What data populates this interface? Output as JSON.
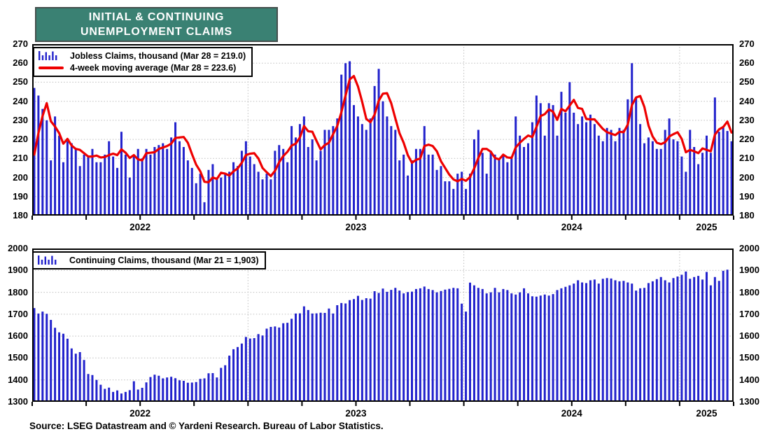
{
  "page": {
    "title_line1": "INITIAL & CONTINUING",
    "title_line2": "UNEMPLOYMENT CLAIMS",
    "source": "Source: LSEG Datastream and © Yardeni Research. Bureau of Labor Statistics."
  },
  "colors": {
    "bars": "#2222CC",
    "line": "#EE0000",
    "title_bg": "#3A8173",
    "title_border": "#454F4D",
    "grid": "#BDBDBD",
    "frame": "#000000"
  },
  "chart_data": [
    {
      "id": "initial-claims",
      "type": "bar",
      "title": "Jobless Claims with 4-week moving average",
      "frequency": "weekly",
      "unit": "thousand",
      "x_range": [
        "Jan 2022",
        "Mar 28, 2025"
      ],
      "ylim": [
        180,
        270
      ],
      "ytick_step": 10,
      "yticks": [
        180,
        190,
        200,
        210,
        220,
        230,
        240,
        250,
        260,
        270
      ],
      "x_slots": 169,
      "year_start_weeks": [
        52,
        104,
        156
      ],
      "year_labels": [
        {
          "label": "2022",
          "center_week": 26
        },
        {
          "label": "2023",
          "center_week": 78
        },
        {
          "label": "2024",
          "center_week": 130
        },
        {
          "label": "2025",
          "center_week": 162.5
        }
      ],
      "grid": "dotted horizontal lines every 10; dotted vertical lines at year starts",
      "legend_position": "top-left",
      "legend": [
        {
          "label": "Jobless Claims, thousand (Mar 28 = 219.0)",
          "swatch": "bars"
        },
        {
          "label": "4-week moving average (Mar 28 = 223.6)",
          "swatch": "line"
        }
      ],
      "last_point": {
        "date": "Mar 28",
        "value": 219.0
      },
      "series": [
        {
          "name": "Jobless Claims, thousand",
          "values": [
            247,
            243,
            236,
            230,
            209,
            232,
            222,
            208,
            219,
            218,
            215,
            206,
            212,
            211,
            215,
            208,
            208,
            212,
            219,
            211,
            205,
            224,
            212,
            200,
            211,
            215,
            210,
            215,
            212,
            216,
            217,
            218,
            215,
            221,
            229,
            219,
            216,
            209,
            205,
            197,
            202,
            187,
            204,
            207,
            199,
            200,
            202,
            203,
            208,
            206,
            214,
            219,
            211,
            207,
            203,
            199,
            202,
            199,
            214,
            217,
            215,
            208,
            227,
            221,
            228,
            232,
            216,
            220,
            209,
            214,
            225,
            225,
            227,
            231,
            254,
            260,
            261,
            238,
            232,
            228,
            225,
            231,
            248,
            257,
            240,
            232,
            227,
            225,
            209,
            212,
            201,
            209,
            215,
            215,
            227,
            212,
            212,
            204,
            206,
            198,
            198,
            194,
            202,
            203,
            194,
            202,
            220,
            225,
            213,
            202,
            214,
            212,
            210,
            212,
            208,
            211,
            232,
            222,
            216,
            218,
            229,
            243,
            239,
            222,
            239,
            238,
            222,
            245,
            234,
            250,
            234,
            228,
            232,
            229,
            233,
            228,
            222,
            219,
            226,
            225,
            219,
            226,
            225,
            241,
            260,
            242,
            228,
            218,
            221,
            219,
            215,
            215,
            225,
            231,
            220,
            219,
            211,
            203,
            225,
            216,
            207,
            213,
            222,
            213,
            242,
            224,
            227,
            224.4,
            219
          ]
        },
        {
          "name": "4-week moving average",
          "derivation": "4-week moving average of Jobless Claims",
          "ma_window": 4,
          "seed_prior_values": [
            198,
            200,
            203
          ],
          "last_value": 223.6
        }
      ]
    },
    {
      "id": "continuing-claims",
      "type": "bar",
      "title": "Continuing Claims",
      "frequency": "weekly",
      "unit": "thousand",
      "x_range": [
        "Jan 2022",
        "Mar 21, 2025"
      ],
      "ylim": [
        1300,
        2000
      ],
      "ytick_step": 100,
      "yticks": [
        1300,
        1400,
        1500,
        1600,
        1700,
        1800,
        1900,
        2000
      ],
      "x_slots": 169,
      "year_start_weeks": [
        52,
        104,
        156
      ],
      "year_labels": [
        {
          "label": "2022",
          "center_week": 26
        },
        {
          "label": "2023",
          "center_week": 78
        },
        {
          "label": "2024",
          "center_week": 130
        },
        {
          "label": "2025",
          "center_week": 162.5
        }
      ],
      "grid": "dotted horizontal lines every 100; dotted vertical lines at year starts",
      "legend_position": "top-left",
      "legend": [
        {
          "label": "Continuing Claims, thousand (Mar 21 = 1,903)",
          "swatch": "bars"
        }
      ],
      "last_point": {
        "date": "Mar 21",
        "value": 1903
      },
      "series": [
        {
          "name": "Continuing Claims, thousand",
          "values": [
            1728,
            1703,
            1712,
            1702,
            1674,
            1638,
            1617,
            1611,
            1588,
            1544,
            1520,
            1527,
            1491,
            1427,
            1422,
            1400,
            1378,
            1359,
            1365,
            1345,
            1352,
            1338,
            1345,
            1353,
            1394,
            1356,
            1364,
            1389,
            1413,
            1424,
            1419,
            1407,
            1411,
            1414,
            1408,
            1398,
            1396,
            1387,
            1388,
            1390,
            1405,
            1407,
            1430,
            1431,
            1411,
            1455,
            1467,
            1511,
            1540,
            1550,
            1566,
            1596,
            1589,
            1591,
            1609,
            1603,
            1634,
            1642,
            1644,
            1639,
            1659,
            1661,
            1679,
            1703,
            1704,
            1736,
            1719,
            1703,
            1704,
            1707,
            1706,
            1726,
            1703,
            1741,
            1751,
            1749,
            1764,
            1769,
            1784,
            1765,
            1773,
            1771,
            1805,
            1797,
            1817,
            1802,
            1811,
            1820,
            1808,
            1795,
            1801,
            1803,
            1815,
            1818,
            1826,
            1815,
            1810,
            1800,
            1806,
            1812,
            1816,
            1820,
            1818,
            1748,
            1712,
            1844,
            1832,
            1820,
            1815,
            1795,
            1800,
            1820,
            1800,
            1815,
            1810,
            1795,
            1790,
            1800,
            1818,
            1795,
            1782,
            1780,
            1785,
            1790,
            1785,
            1792,
            1810,
            1818,
            1825,
            1832,
            1840,
            1855,
            1845,
            1842,
            1855,
            1858,
            1840,
            1862,
            1865,
            1863,
            1855,
            1850,
            1852,
            1845,
            1840,
            1808,
            1818,
            1820,
            1842,
            1850,
            1860,
            1870,
            1855,
            1845,
            1865,
            1872,
            1880,
            1895,
            1862,
            1870,
            1875,
            1858,
            1893,
            1832,
            1870,
            1852,
            1898,
            1903
          ]
        }
      ]
    }
  ]
}
